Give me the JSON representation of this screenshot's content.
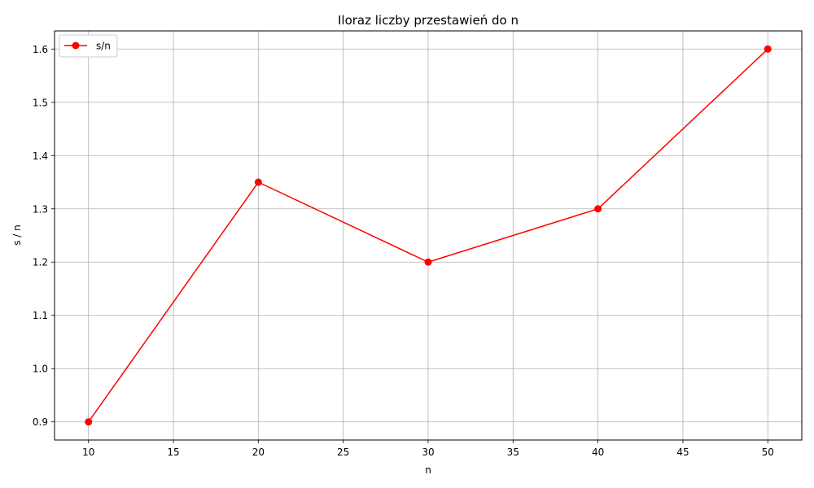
{
  "chart_data": {
    "type": "line",
    "title": "Iloraz liczby przestawień do n",
    "xlabel": "n",
    "ylabel": "s / n",
    "x": [
      10,
      20,
      30,
      40,
      50
    ],
    "series": [
      {
        "name": "s/n",
        "values": [
          0.9,
          1.35,
          1.2,
          1.3,
          1.6
        ],
        "color": "#ff0000",
        "marker": "circle"
      }
    ],
    "xlim": [
      8,
      52
    ],
    "ylim": [
      0.866,
      1.634
    ],
    "xticks": [
      10,
      15,
      20,
      25,
      30,
      35,
      40,
      45,
      50
    ],
    "yticks": [
      0.9,
      1.0,
      1.1,
      1.2,
      1.3,
      1.4,
      1.5,
      1.6
    ],
    "grid": true,
    "legend_position": "top-left"
  }
}
